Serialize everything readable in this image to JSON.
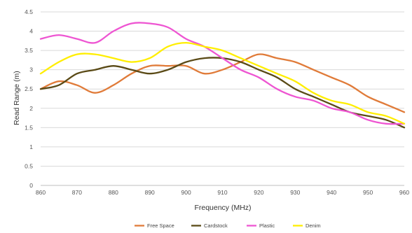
{
  "chart_data": {
    "type": "line",
    "title": "",
    "xlabel": "Frequency (MHz)",
    "ylabel": "Read Range (m)",
    "xlim": [
      860,
      960
    ],
    "ylim": [
      0,
      4.5
    ],
    "x_ticks": [
      "860",
      "870",
      "880",
      "890",
      "900",
      "910",
      "920",
      "930",
      "940",
      "950",
      "960"
    ],
    "y_ticks": [
      "0",
      "0.5",
      "1",
      "1.5",
      "2",
      "2.5",
      "3",
      "3.5",
      "4",
      "4.5"
    ],
    "grid": "horizontal",
    "legend_position": "bottom",
    "x": [
      860,
      865,
      870,
      875,
      880,
      885,
      890,
      895,
      900,
      905,
      910,
      915,
      920,
      925,
      930,
      935,
      940,
      945,
      950,
      955,
      960
    ],
    "series": [
      {
        "name": "Free Space",
        "color": "#e07b39",
        "values": [
          2.5,
          2.7,
          2.6,
          2.4,
          2.6,
          2.9,
          3.1,
          3.1,
          3.1,
          2.9,
          3.0,
          3.2,
          3.4,
          3.3,
          3.2,
          3.0,
          2.8,
          2.6,
          2.3,
          2.1,
          1.9
        ]
      },
      {
        "name": "Cardstock",
        "color": "#5a4a16",
        "values": [
          2.5,
          2.6,
          2.9,
          3.0,
          3.1,
          3.0,
          2.9,
          3.0,
          3.2,
          3.3,
          3.3,
          3.2,
          3.0,
          2.8,
          2.5,
          2.3,
          2.1,
          1.9,
          1.8,
          1.7,
          1.5
        ]
      },
      {
        "name": "Plastic",
        "color": "#ee55d2",
        "values": [
          3.8,
          3.9,
          3.8,
          3.7,
          4.0,
          4.2,
          4.2,
          4.1,
          3.8,
          3.6,
          3.3,
          3.0,
          2.8,
          2.5,
          2.3,
          2.2,
          2.0,
          1.9,
          1.7,
          1.6,
          1.6
        ]
      },
      {
        "name": "Denim",
        "color": "#ffee00",
        "values": [
          2.9,
          3.2,
          3.4,
          3.4,
          3.3,
          3.2,
          3.3,
          3.6,
          3.7,
          3.6,
          3.5,
          3.3,
          3.1,
          2.9,
          2.7,
          2.4,
          2.2,
          2.1,
          1.9,
          1.8,
          1.6
        ]
      }
    ]
  }
}
